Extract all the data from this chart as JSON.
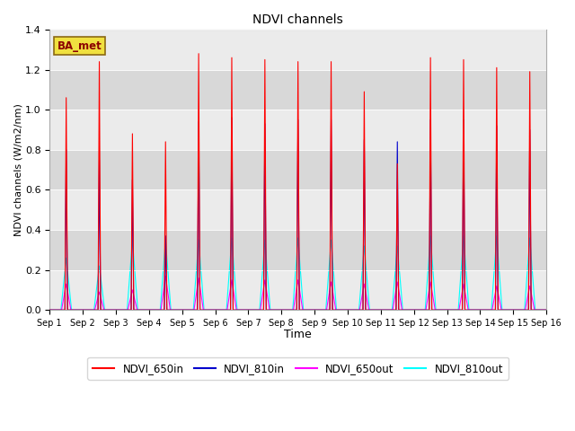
{
  "title": "NDVI channels",
  "xlabel": "Time",
  "ylabel": "NDVI channels (W/m2/nm)",
  "ylim": [
    0,
    1.4
  ],
  "annotation_text": "BA_met",
  "legend_labels": [
    "NDVI_650in",
    "NDVI_810in",
    "NDVI_650out",
    "NDVI_810out"
  ],
  "line_colors": [
    "red",
    "#0000cc",
    "magenta",
    "cyan"
  ],
  "bg_color": "#d8d8d8",
  "band_color": "#ebebeb",
  "num_days": 15,
  "peaks_650in": [
    1.06,
    1.24,
    0.88,
    0.84,
    1.28,
    1.26,
    1.25,
    1.24,
    1.24,
    1.09,
    0.73,
    1.26,
    1.25,
    1.21,
    1.19
  ],
  "peaks_810in": [
    0.8,
    0.75,
    0.65,
    0.37,
    0.94,
    0.96,
    0.93,
    0.95,
    0.95,
    0.85,
    0.84,
    0.95,
    0.95,
    0.92,
    0.9
  ],
  "peaks_650out": [
    0.13,
    0.09,
    0.1,
    0.17,
    0.16,
    0.15,
    0.15,
    0.15,
    0.14,
    0.13,
    0.14,
    0.14,
    0.13,
    0.12,
    0.12
  ],
  "peaks_810out": [
    0.26,
    0.22,
    0.35,
    0.35,
    0.35,
    0.36,
    0.35,
    0.36,
    0.35,
    0.32,
    0.32,
    0.37,
    0.37,
    0.37,
    0.36
  ],
  "x_tick_labels": [
    "Sep 1",
    "Sep 2",
    "Sep 3",
    "Sep 4",
    "Sep 5",
    "Sep 6",
    "Sep 7",
    "Sep 8",
    "Sep 9",
    "Sep 10",
    "Sep 11",
    "Sep 12",
    "Sep 13",
    "Sep 14",
    "Sep 15",
    "Sep 16"
  ],
  "yticks": [
    0.0,
    0.2,
    0.4,
    0.6,
    0.8,
    1.0,
    1.2,
    1.4
  ]
}
